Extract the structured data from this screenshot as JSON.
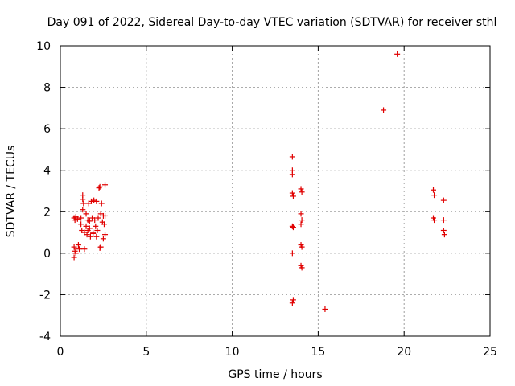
{
  "chart_data": {
    "type": "scatter",
    "title": "Day 091 of 2022, Sidereal Day-to-day VTEC variation (SDTVAR) for receiver sthl",
    "xlabel": "GPS time / hours",
    "ylabel": "SDTVAR / TECUs",
    "xlim": [
      0,
      25
    ],
    "ylim": [
      -4,
      10
    ],
    "xticks": [
      0,
      5,
      10,
      15,
      20,
      25
    ],
    "yticks": [
      -4,
      -2,
      0,
      2,
      4,
      6,
      8,
      10
    ],
    "grid": true,
    "marker": "+",
    "color": "#e00000",
    "series": [
      {
        "name": "sthl",
        "points": [
          [
            0.8,
            1.7
          ],
          [
            0.85,
            1.6
          ],
          [
            0.9,
            1.75
          ],
          [
            0.8,
            0.3
          ],
          [
            0.85,
            0.1
          ],
          [
            0.8,
            -0.2
          ],
          [
            0.9,
            0.0
          ],
          [
            1.0,
            1.65
          ],
          [
            1.05,
            0.4
          ],
          [
            1.1,
            0.2
          ],
          [
            1.2,
            1.7
          ],
          [
            1.2,
            1.4
          ],
          [
            1.25,
            1.1
          ],
          [
            1.3,
            2.1
          ],
          [
            1.3,
            2.8
          ],
          [
            1.3,
            2.6
          ],
          [
            1.35,
            2.4
          ],
          [
            1.4,
            1.0
          ],
          [
            1.4,
            0.2
          ],
          [
            1.5,
            1.9
          ],
          [
            1.5,
            1.3
          ],
          [
            1.55,
            0.9
          ],
          [
            1.6,
            1.6
          ],
          [
            1.6,
            1.1
          ],
          [
            1.65,
            2.4
          ],
          [
            1.7,
            1.55
          ],
          [
            1.7,
            1.2
          ],
          [
            1.75,
            0.8
          ],
          [
            1.8,
            2.5
          ],
          [
            1.85,
            1.7
          ],
          [
            1.9,
            1.0
          ],
          [
            1.9,
            0.95
          ],
          [
            1.95,
            2.55
          ],
          [
            2.0,
            1.6
          ],
          [
            2.05,
            1.3
          ],
          [
            2.1,
            2.5
          ],
          [
            2.1,
            0.8
          ],
          [
            2.15,
            1.1
          ],
          [
            2.2,
            1.7
          ],
          [
            2.25,
            3.15
          ],
          [
            2.3,
            3.2
          ],
          [
            2.3,
            0.25
          ],
          [
            2.35,
            1.9
          ],
          [
            2.35,
            0.3
          ],
          [
            2.4,
            2.4
          ],
          [
            2.45,
            1.5
          ],
          [
            2.5,
            1.8
          ],
          [
            2.5,
            0.7
          ],
          [
            2.55,
            1.4
          ],
          [
            2.6,
            3.3
          ],
          [
            2.6,
            1.8
          ],
          [
            2.6,
            0.9
          ],
          [
            13.5,
            4.65
          ],
          [
            13.5,
            4.0
          ],
          [
            13.5,
            3.8
          ],
          [
            13.5,
            2.9
          ],
          [
            13.55,
            2.75
          ],
          [
            13.5,
            1.3
          ],
          [
            13.55,
            1.25
          ],
          [
            13.5,
            0.0
          ],
          [
            13.55,
            -2.25
          ],
          [
            13.5,
            -2.4
          ],
          [
            14.0,
            3.1
          ],
          [
            14.05,
            2.95
          ],
          [
            14.0,
            1.9
          ],
          [
            14.05,
            1.6
          ],
          [
            14.0,
            1.4
          ],
          [
            14.0,
            0.4
          ],
          [
            14.05,
            0.3
          ],
          [
            14.0,
            -0.6
          ],
          [
            14.05,
            -0.7
          ],
          [
            15.4,
            -2.7
          ],
          [
            18.8,
            6.9
          ],
          [
            19.6,
            9.6
          ],
          [
            21.7,
            3.05
          ],
          [
            21.75,
            2.8
          ],
          [
            21.7,
            1.7
          ],
          [
            21.75,
            1.6
          ],
          [
            22.3,
            2.55
          ],
          [
            22.3,
            1.6
          ],
          [
            22.3,
            1.1
          ],
          [
            22.35,
            0.9
          ]
        ]
      }
    ]
  }
}
